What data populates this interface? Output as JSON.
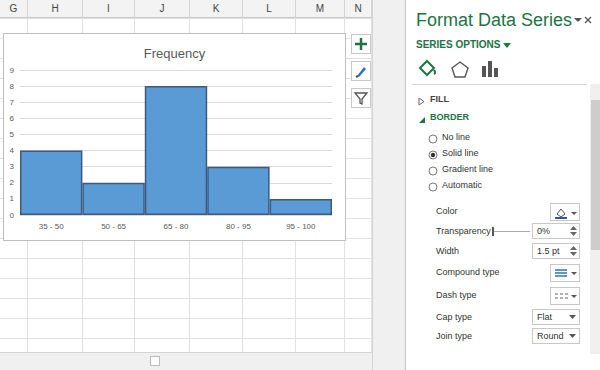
{
  "spreadsheet": {
    "columns": [
      "G",
      "H",
      "I",
      "J",
      "K",
      "L",
      "M",
      "N"
    ]
  },
  "chart_data": {
    "type": "bar",
    "title": "Frequency",
    "categories": [
      "35 - 50",
      "50 - 65",
      "65 - 80",
      "80 - 95",
      "95 - 100"
    ],
    "values": [
      4,
      2,
      8,
      3,
      1
    ],
    "color": "#5b9bd5",
    "ylim": [
      0,
      9
    ],
    "yticks": [
      0,
      1,
      2,
      3,
      4,
      5,
      6,
      7,
      8,
      9
    ],
    "grid": true
  },
  "pane": {
    "title": "Format Data Series",
    "tab": "SERIES OPTIONS",
    "sections": [
      {
        "title": "FILL",
        "expanded": false
      },
      {
        "title": "BORDER",
        "expanded": true,
        "options": [
          {
            "label": "No line",
            "selected": false
          },
          {
            "label": "Solid line",
            "selected": true
          },
          {
            "label": "Gradient line",
            "selected": false
          },
          {
            "label": "Automatic",
            "selected": false
          }
        ],
        "settings": [
          {
            "label": "Color"
          },
          {
            "label": "Transparency",
            "value": "0%"
          },
          {
            "label": "Width",
            "value": "1.5 pt"
          },
          {
            "label": "Compound type"
          },
          {
            "label": "Dash type"
          },
          {
            "label": "Cap type",
            "value": "Flat"
          },
          {
            "label": "Join type",
            "value": "Round"
          }
        ]
      }
    ]
  }
}
